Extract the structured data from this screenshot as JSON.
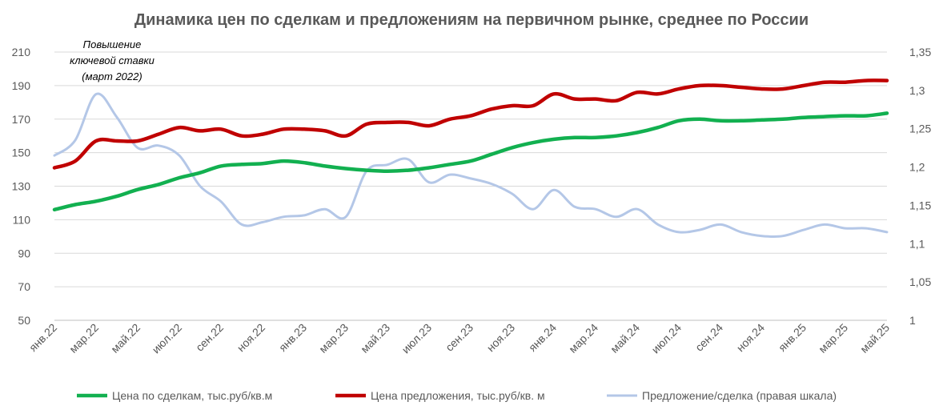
{
  "chart_data": {
    "type": "line",
    "title": "Динамика цен по сделкам и предложениям на первичном рынке, среднее по России",
    "x_tick_labels": [
      "янв.22",
      "мар.22",
      "май.22",
      "июл.22",
      "сен.22",
      "ноя.22",
      "янв.23",
      "мар.23",
      "май.23",
      "июл.23",
      "сен.23",
      "ноя.23",
      "янв.24",
      "мар.24",
      "май.24",
      "июл.24",
      "сен.24",
      "ноя.24",
      "янв.25",
      "мар.25",
      "май.25"
    ],
    "x": [
      "янв.22",
      "фев.22",
      "мар.22",
      "апр.22",
      "май.22",
      "июн.22",
      "июл.22",
      "авг.22",
      "сен.22",
      "окт.22",
      "ноя.22",
      "дек.22",
      "янв.23",
      "фев.23",
      "мар.23",
      "апр.23",
      "май.23",
      "июн.23",
      "июл.23",
      "авг.23",
      "сен.23",
      "окт.23",
      "ноя.23",
      "дек.23",
      "янв.24",
      "фев.24",
      "мар.24",
      "апр.24",
      "май.24",
      "июн.24",
      "июл.24",
      "авг.24",
      "сен.24",
      "окт.24",
      "ноя.24",
      "дек.24",
      "янв.25",
      "фев.25",
      "мар.25",
      "апр.25",
      "май.25"
    ],
    "left_axis": {
      "min": 50,
      "max": 210,
      "ticks": [
        50,
        70,
        90,
        110,
        130,
        150,
        170,
        190,
        210
      ]
    },
    "right_axis": {
      "min": 1,
      "max": 1.35,
      "ticks": [
        "1",
        "1,05",
        "1,1",
        "1,15",
        "1,2",
        "1,25",
        "1,3",
        "1,35"
      ]
    },
    "grid": true,
    "legend_position": "bottom",
    "annotations": [
      {
        "lines": [
          "Повышение",
          "ключевой ставки",
          "(март 2022)"
        ],
        "x": "мар.22"
      }
    ],
    "series": [
      {
        "name": "Цена по сделкам, тыс.руб/кв.м",
        "axis": "left",
        "color": "#12b050",
        "values": [
          116,
          119,
          121,
          124,
          128,
          131,
          135,
          138,
          142,
          143,
          143.5,
          145,
          144,
          142,
          140.5,
          139.5,
          139,
          139.5,
          141,
          143,
          145,
          149,
          153,
          156,
          158,
          159,
          159,
          160,
          162,
          165,
          169,
          170,
          169,
          169,
          169.5,
          170,
          171,
          171.5,
          172,
          172,
          173.5
        ]
      },
      {
        "name": "Цена предложения, тыс.руб/кв. м",
        "axis": "left",
        "color": "#c00000",
        "values": [
          141,
          145,
          157,
          157,
          157,
          161,
          165,
          163,
          164,
          160,
          161,
          164,
          164,
          163,
          160,
          167,
          168,
          168,
          166,
          170,
          172,
          176,
          178,
          178,
          185,
          182,
          182,
          181,
          186,
          185,
          188,
          190,
          190,
          189,
          188,
          188,
          190,
          192,
          192,
          193,
          193
        ]
      },
      {
        "name": "Предложение/сделка (правая шкала)",
        "axis": "right",
        "color": "#b4c7e7",
        "values": [
          1.215,
          1.235,
          1.295,
          1.265,
          1.225,
          1.228,
          1.215,
          1.175,
          1.155,
          1.125,
          1.128,
          1.135,
          1.137,
          1.145,
          1.135,
          1.195,
          1.203,
          1.21,
          1.18,
          1.19,
          1.185,
          1.178,
          1.165,
          1.145,
          1.17,
          1.148,
          1.145,
          1.135,
          1.145,
          1.125,
          1.115,
          1.118,
          1.125,
          1.115,
          1.11,
          1.11,
          1.118,
          1.125,
          1.12,
          1.12,
          1.115
        ]
      }
    ]
  }
}
